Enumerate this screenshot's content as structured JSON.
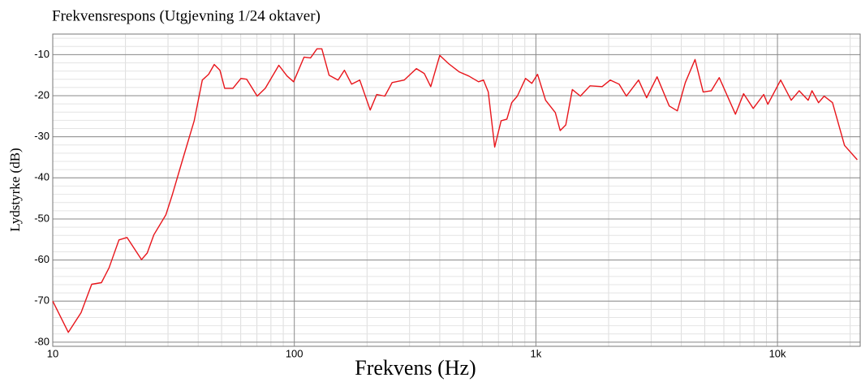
{
  "chart_data": {
    "type": "line",
    "title": "Frekvensrespons (Utgjevning 1/24 oktaver)",
    "x_label": "Frekvens (Hz)",
    "y_label": "Lydstyrke (dB)",
    "x_scale": "log",
    "grid": true,
    "xlim": [
      10,
      22000
    ],
    "ylim": [
      -81,
      -5
    ],
    "xticks": [
      10,
      100,
      {
        "value": 1000,
        "label": "1k"
      },
      {
        "value": 10000,
        "label": "10k"
      }
    ],
    "yticks": [
      -80,
      -70,
      -60,
      -50,
      -40,
      -30,
      -20,
      -10
    ],
    "series": [
      {
        "name": "Frekvensrespons",
        "color": "#e8151b",
        "x": [
          10,
          11.6,
          13.1,
          14.5,
          15.9,
          17.1,
          18.8,
          20.3,
          23.3,
          24.6,
          26.2,
          29.4,
          31.3,
          34.3,
          38.5,
          41.6,
          44.2,
          46.6,
          49.2,
          51.5,
          55.7,
          60.1,
          63.5,
          70.2,
          75.8,
          86.3,
          93.3,
          99.3,
          109.7,
          116.7,
          124.1,
          130,
          139.3,
          151.7,
          161.2,
          172.7,
          186.6,
          206.1,
          219.3,
          237,
          254,
          285,
          320,
          345,
          367,
          400,
          435,
          481,
          527,
          579,
          607,
          635,
          675,
          718,
          758,
          794,
          838,
          906,
          962,
          1016,
          1097,
          1203,
          1260,
          1330,
          1415,
          1528,
          1675,
          1880,
          2031,
          2210,
          2370,
          2660,
          2872,
          3175,
          3565,
          3850,
          4155,
          4560,
          4925,
          5320,
          5740,
          6700,
          7240,
          7940,
          8770,
          9120,
          10310,
          11400,
          12300,
          13400,
          13900,
          14800,
          15600,
          16900,
          18950,
          21400
        ],
        "values": [
          -70,
          -77.6,
          -72.8,
          -65.9,
          -65.5,
          -61.9,
          -55.1,
          -54.5,
          -59.9,
          -58.3,
          -53.9,
          -49,
          -44,
          -36,
          -26.1,
          -16.2,
          -14.8,
          -12.4,
          -13.8,
          -18.2,
          -18.2,
          -15.8,
          -16,
          -20.1,
          -18.2,
          -12.6,
          -15.2,
          -16.6,
          -10.6,
          -10.8,
          -8.6,
          -8.6,
          -15,
          -16.2,
          -13.8,
          -17.2,
          -16.2,
          -23.5,
          -19.7,
          -20.1,
          -16.8,
          -16.2,
          -13.4,
          -14.6,
          -17.8,
          -10.2,
          -12.2,
          -14.2,
          -15.2,
          -16.6,
          -16.2,
          -19.1,
          -32.5,
          -26.1,
          -25.7,
          -21.7,
          -20.1,
          -15.8,
          -17,
          -14.8,
          -21.1,
          -24.1,
          -28.5,
          -27.1,
          -18.5,
          -20.1,
          -17.6,
          -17.8,
          -16.2,
          -17.2,
          -20.1,
          -16.2,
          -20.5,
          -15.4,
          -22.5,
          -23.7,
          -16.8,
          -11.2,
          -19.1,
          -18.8,
          -15.6,
          -24.5,
          -19.5,
          -23.1,
          -19.7,
          -22.1,
          -16.2,
          -21.1,
          -18.8,
          -21.1,
          -18.8,
          -21.7,
          -20.1,
          -21.7,
          -32.1,
          -35.6
        ]
      }
    ]
  }
}
